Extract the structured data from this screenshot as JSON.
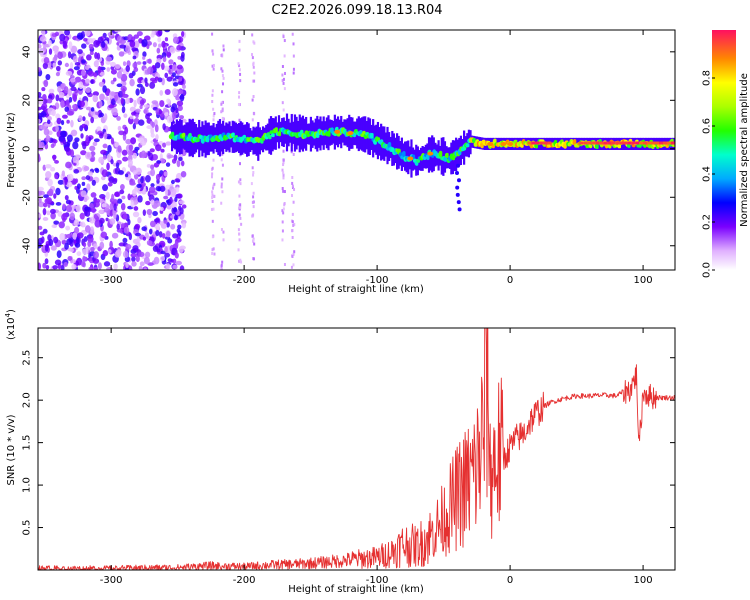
{
  "title": "C2E2.2026.099.18.13.R04",
  "chart_data": [
    {
      "type": "heatmap",
      "name": "spectrogram",
      "xlabel": "Height of straight line (km)",
      "ylabel": "Frequency (Hz)",
      "xlim": [
        -355,
        124
      ],
      "ylim": [
        -50,
        49
      ],
      "xticks": [
        -300,
        -200,
        -100,
        0,
        100
      ],
      "yticks": [
        -40,
        -20,
        0,
        20,
        40
      ],
      "colorbar": {
        "label": "Normalized spectral amplitude",
        "range": [
          0,
          1
        ],
        "ticks": [
          0.0,
          0.2,
          0.4,
          0.6,
          0.8
        ],
        "tick_labels": [
          "0.0",
          "0.2",
          "0.4",
          "0.6",
          "0.8"
        ]
      },
      "ridge": {
        "x": [
          -250,
          -230,
          -210,
          -190,
          -175,
          -150,
          -130,
          -110,
          -95,
          -80,
          -70,
          -60,
          -45,
          -30,
          -20,
          0,
          20,
          40,
          60,
          80,
          100,
          124
        ],
        "y": [
          5,
          4,
          5,
          3,
          7,
          6,
          7,
          6,
          2,
          -3,
          -5,
          -2,
          -4,
          3,
          2,
          2,
          2,
          2,
          2,
          2,
          2,
          2
        ]
      }
    },
    {
      "type": "line",
      "name": "snr",
      "xlabel": "Height of straight line (km)",
      "ylabel": "SNR (10 * v/v)",
      "scale_label": "(x10",
      "scale_exp": "4",
      "scale_close": ")",
      "xlim": [
        -355,
        124
      ],
      "ylim": [
        0,
        2.85
      ],
      "xticks": [
        -300,
        -200,
        -100,
        0,
        100
      ],
      "yticks": [
        0.5,
        1.0,
        1.5,
        2.0,
        2.5
      ],
      "ytick_labels": [
        "0.5",
        "1.0",
        "1.5",
        "2.0",
        "2.5"
      ],
      "series": [
        {
          "name": "SNR",
          "color": "#e53030",
          "x": [
            -355,
            -300,
            -250,
            -225,
            -200,
            -180,
            -160,
            -140,
            -120,
            -100,
            -90,
            -80,
            -70,
            -60,
            -50,
            -40,
            -30,
            -25,
            -20,
            -17,
            -15,
            -10,
            -5,
            0,
            5,
            10,
            15,
            20,
            25,
            30,
            40,
            50,
            60,
            70,
            80,
            85,
            90,
            95,
            97,
            100,
            105,
            110,
            124
          ],
          "y": [
            0.02,
            0.02,
            0.03,
            0.05,
            0.04,
            0.06,
            0.07,
            0.09,
            0.12,
            0.15,
            0.2,
            0.3,
            0.28,
            0.4,
            0.6,
            0.85,
            1.05,
            1.2,
            1.6,
            2.7,
            1.1,
            1.35,
            1.3,
            1.45,
            1.55,
            1.6,
            1.75,
            1.85,
            1.92,
            1.97,
            2.02,
            2.05,
            2.05,
            2.06,
            2.05,
            2.1,
            2.12,
            2.3,
            1.45,
            2.1,
            2.05,
            2.03,
            2.03
          ]
        }
      ]
    }
  ]
}
